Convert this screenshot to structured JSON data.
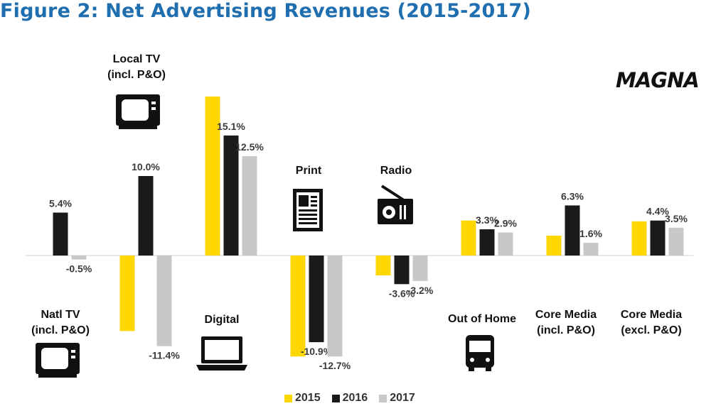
{
  "title": "Figure 2: Net Advertising Revenues (2015-2017)",
  "logo": "MAGNA",
  "colors": {
    "2015": "#FFD700",
    "2016": "#1a1a1a",
    "2017": "#c8c8c8"
  },
  "chart_data": {
    "type": "bar",
    "title": "Figure 2: Net Advertising Revenues (2015-2017)",
    "categories": [
      {
        "name": "Natl TV",
        "sub": "(incl. P&O)",
        "icon": "tv-icon"
      },
      {
        "name": "Local TV",
        "sub": "(incl. P&O)",
        "icon": "tv-icon"
      },
      {
        "name": "Digital",
        "sub": "",
        "icon": "laptop-icon"
      },
      {
        "name": "Print",
        "sub": "",
        "icon": "newspaper-icon"
      },
      {
        "name": "Radio",
        "sub": "",
        "icon": "radio-icon"
      },
      {
        "name": "Out of Home",
        "sub": "",
        "icon": "bus-icon"
      },
      {
        "name": "Core Media",
        "sub": "(incl. P&O)",
        "icon": ""
      },
      {
        "name": "Core Media",
        "sub": "(excl. P&O)",
        "icon": ""
      }
    ],
    "series": [
      {
        "name": "2015",
        "color": "#FFD700",
        "values": [
          0.0,
          -9.5,
          20.0,
          -12.7,
          -2.5,
          4.4,
          2.5,
          4.3
        ]
      },
      {
        "name": "2016",
        "color": "#1a1a1a",
        "values": [
          5.4,
          10.0,
          15.1,
          -10.9,
          -3.6,
          3.3,
          6.3,
          4.4
        ]
      },
      {
        "name": "2017",
        "color": "#c8c8c8",
        "values": [
          -0.5,
          -11.4,
          12.5,
          -12.7,
          -3.2,
          2.9,
          1.6,
          3.5
        ]
      }
    ],
    "data_labels": [
      [
        "",
        "5.4%",
        "-0.5%"
      ],
      [
        "",
        "10.0%",
        "-11.4%"
      ],
      [
        "",
        "15.1%",
        "12.5%"
      ],
      [
        "",
        "-10.9%",
        "-12.7%"
      ],
      [
        "",
        "-3.6%",
        "-3.2%"
      ],
      [
        "",
        "3.3%",
        "2.9%"
      ],
      [
        "",
        "6.3%",
        "1.6%"
      ],
      [
        "",
        "4.4%",
        "3.5%"
      ]
    ],
    "legend": [
      "2015",
      "2016",
      "2017"
    ],
    "legend_position": "bottom",
    "ylim": [
      -13,
      20
    ],
    "grid": false
  }
}
